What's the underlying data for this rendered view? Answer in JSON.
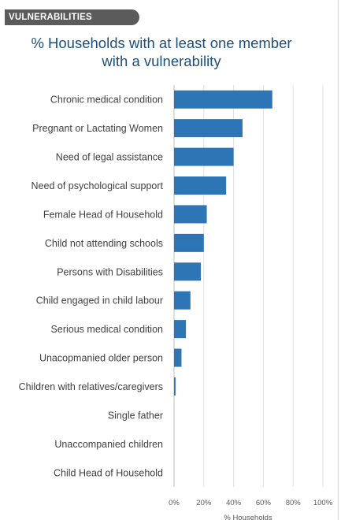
{
  "section": {
    "label": "VULNERABILITIES"
  },
  "chart_data": {
    "type": "bar",
    "orientation": "horizontal",
    "title_line1": "% Households with at least one member",
    "title_line2": "with a vulnerability",
    "xlabel": "% Households",
    "ylabel": "",
    "xlim": [
      0,
      100
    ],
    "ticks": [
      0,
      20,
      40,
      60,
      80,
      100
    ],
    "tick_labels": [
      "0%",
      "20%",
      "40%",
      "60%",
      "80%",
      "100%"
    ],
    "grid": true,
    "bar_color": "#2e75b6",
    "categories": [
      "Chronic medical condition",
      "Pregnant or Lactating Women",
      "Need of legal assistance",
      "Need of psychological support",
      "Female Head of Household",
      "Child not attending schools",
      "Persons with Disabilities",
      "Child engaged in child labour",
      "Serious medical condition",
      "Unacopmanied older person",
      "Children with relatives/caregivers",
      "Single father",
      "Unaccompanied children",
      "Child Head of Household"
    ],
    "values": [
      66,
      46,
      40,
      35,
      22,
      20,
      18,
      11,
      8,
      5,
      1,
      0,
      0,
      0
    ]
  },
  "colors": {
    "title": "#1f4e79",
    "tab_bg": "#5b5b5b",
    "grid": "#e0e0e0"
  }
}
